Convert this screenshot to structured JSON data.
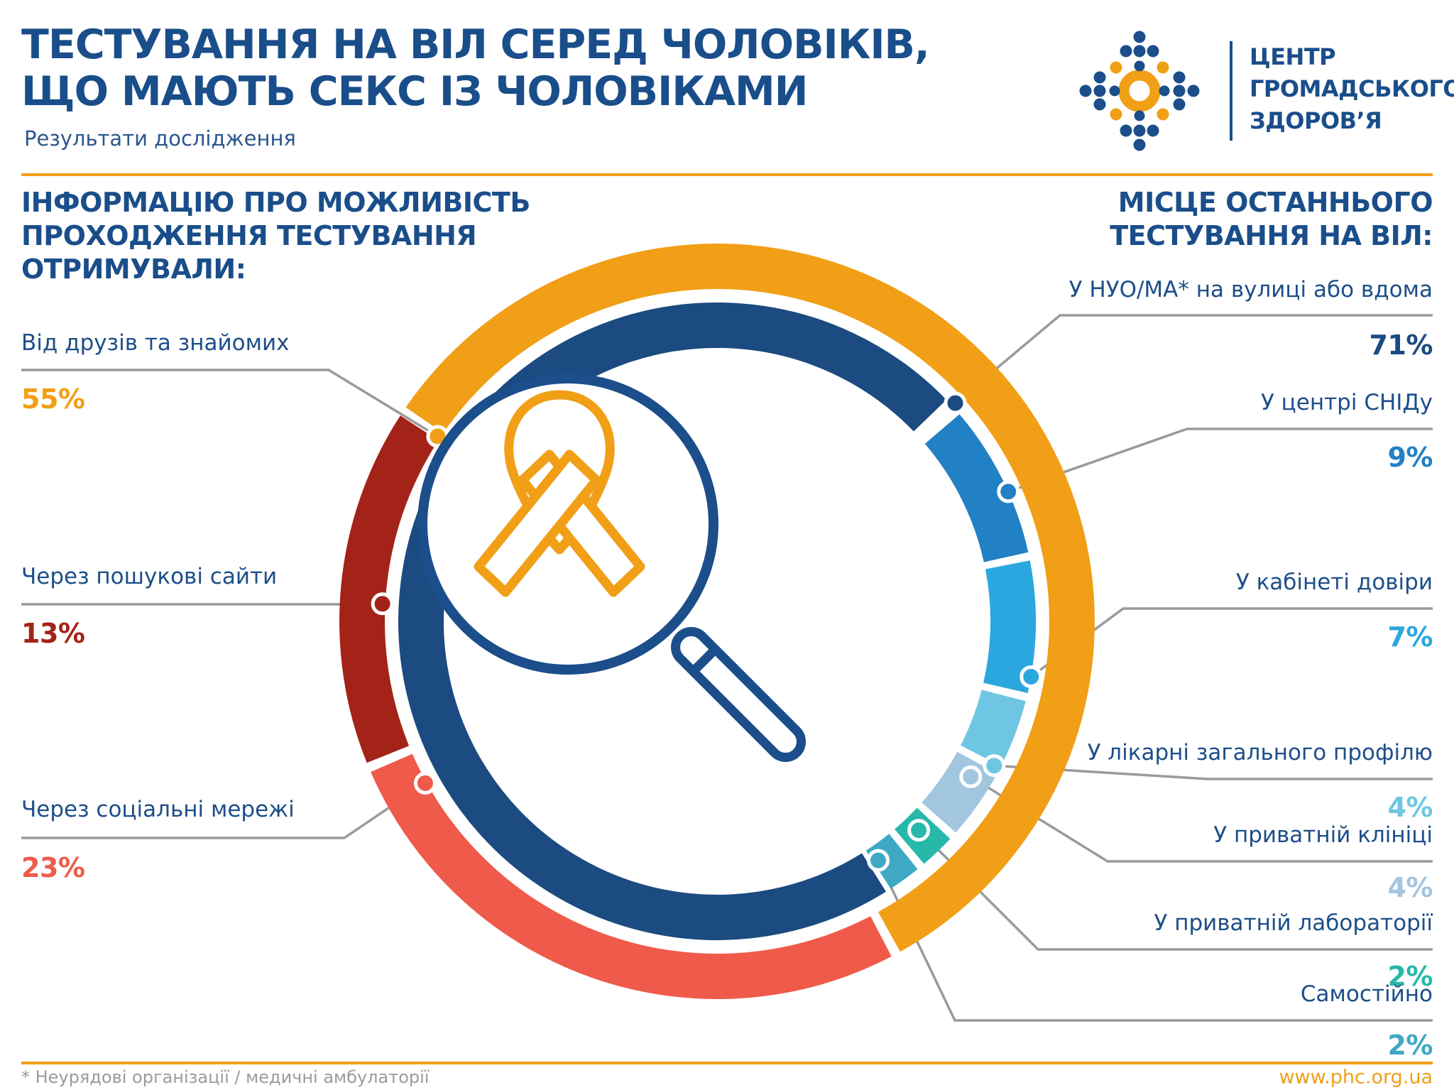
{
  "header": {
    "title_line1": "ТЕСТУВАННЯ НА ВІЛ СЕРЕД ЧОЛОВІКІВ,",
    "title_line2": "ЩО МАЮТЬ СЕКС ІЗ ЧОЛОВІКАМИ",
    "subtitle": "Результати дослідження"
  },
  "logo": {
    "line1": "ЦЕНТР",
    "line2": "ГРОМАДСЬКОГО",
    "line3": "ЗДОРОВ’Я",
    "icon": "phc-dots-logo"
  },
  "sections": {
    "left": {
      "heading": [
        "ІНФОРМАЦІЮ ПРО МОЖЛИВІСТЬ",
        "ПРОХОДЖЕННЯ ТЕСТУВАННЯ",
        "ОТРИМУВАЛИ:"
      ]
    },
    "right": {
      "heading": [
        "МІСЦЕ ОСТАННЬОГО",
        "ТЕСТУВАННЯ НА ВІЛ:"
      ]
    }
  },
  "footer": {
    "note": "* Неурядові організації / медичні амбулаторії",
    "site": "www.phc.org.ua"
  },
  "colors": {
    "title_navy": "#1A4E8A",
    "label_navy": "#1D4E89",
    "subtitle_navy": "#2C568D",
    "accent_orange": "#F19F16",
    "leader_gray": "#9A9A9A",
    "footnote_gray": "#9B9B9B",
    "background": "#FFFFFF"
  },
  "center_icon": "magnifier-with-awareness-ribbon",
  "chart_data": [
    {
      "type": "pie",
      "ring": "outer",
      "title": "ІНФОРМАЦІЮ ПРО МОЖЛИВІСТЬ ПРОХОДЖЕННЯ ТЕСТУВАННЯ ОТРИМУВАЛИ:",
      "legend_position": "left",
      "items": [
        {
          "label": "Від друзів та знайомих",
          "value": 55,
          "pct_text": "55%",
          "color": "#F19F16",
          "start": 304.5,
          "end": 151,
          "dot": 303.5,
          "dotR": 472
        },
        {
          "label": "Через пошукові сайти",
          "value": 13,
          "pct_text": "13%",
          "color": "#A32318",
          "start": 248,
          "end": 303,
          "dot": 273,
          "dotR": 472
        },
        {
          "label": "Через соціальні мережі",
          "value": 23,
          "pct_text": "23%",
          "color": "#EF5A4A",
          "start": 152.5,
          "end": 246.5,
          "dot": 241,
          "dotR": 470
        }
      ]
    },
    {
      "type": "pie",
      "ring": "inner",
      "title": "МІСЦЕ ОСТАННЬОГО ТЕСТУВАННЯ НА ВІЛ:",
      "legend_position": "right",
      "items": [
        {
          "label": "У НУО/МА* на вулиці або вдома",
          "value": 71,
          "pct_text": "71%",
          "color": "#1B4B80",
          "start": 148,
          "end": 46,
          "dot": 47.5,
          "dotR": 455
        },
        {
          "label": "У центрі СНІДу",
          "value": 9,
          "pct_text": "9%",
          "color": "#2280C4",
          "start": 49.5,
          "end": 77.5,
          "dot": 66,
          "dotR": 449
        },
        {
          "label": "У кабінеті довіри",
          "value": 7,
          "pct_text": "7%",
          "color": "#2AA7DF",
          "start": 79,
          "end": 103,
          "dot": 100,
          "dotR": 449
        },
        {
          "label": "У лікарні загального профілю",
          "value": 4,
          "pct_text": "4%",
          "color": "#6FC6E3",
          "start": 104.5,
          "end": 117,
          "dot": 117.5,
          "dotR": 440
        },
        {
          "label": "У приватній клініці",
          "value": 4,
          "pct_text": "4%",
          "color": "#A3C6DF",
          "start": 118.5,
          "end": 131.5,
          "dot": 121.5,
          "dotR": 419
        },
        {
          "label": "У приватній лабораторії",
          "value": 2,
          "pct_text": "2%",
          "color": "#27B8AA",
          "start": 133,
          "end": 139.5,
          "dot": 136,
          "dotR": 409
        },
        {
          "label": "Самостійно",
          "value": 2,
          "pct_text": "2%",
          "color": "#3FA9C4",
          "start": 141,
          "end": 147,
          "dot": 146,
          "dotR": 406
        }
      ]
    }
  ]
}
